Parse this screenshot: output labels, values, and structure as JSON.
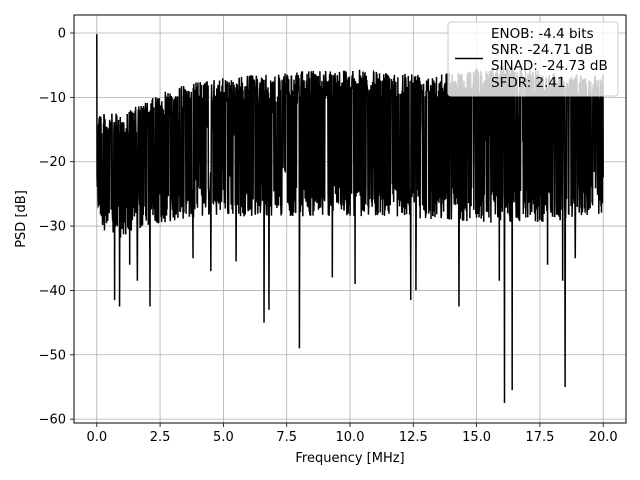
{
  "chart_data": {
    "type": "line",
    "title": "",
    "xlabel": "Frequency [MHz]",
    "ylabel": "PSD [dB]",
    "xlim": [
      -0.9,
      20.9
    ],
    "ylim": [
      -60.6,
      2.8
    ],
    "grid": true,
    "legend_position": "top-right",
    "xticks": [
      0.0,
      2.5,
      5.0,
      7.5,
      10.0,
      12.5,
      15.0,
      17.5,
      20.0
    ],
    "xtick_labels": [
      "0.0",
      "2.5",
      "5.0",
      "7.5",
      "10.0",
      "12.5",
      "15.0",
      "17.5",
      "20.0"
    ],
    "yticks": [
      0,
      -10,
      -20,
      -30,
      -40,
      -50,
      -60
    ],
    "ytick_labels": [
      "0",
      "−10",
      "−20",
      "−30",
      "−40",
      "−50",
      "−60"
    ],
    "legend_lines": [
      "ENOB: -4.4 bits",
      "SNR: -24.71 dB",
      "SINAD: -24.73 dB",
      "SFDR: 2.41"
    ],
    "series": [
      {
        "color": "#000000",
        "x_start": 0.0,
        "x_end": 20.0,
        "samples": 2048,
        "peak": {
          "x": 0.0,
          "y": -0.2
        },
        "envelope": {
          "x": [
            0.0,
            0.25,
            0.5,
            1.0,
            1.5,
            2.0,
            2.5,
            3.0,
            3.5,
            4.0,
            5.0,
            6.0,
            7.0,
            8.0,
            9.0,
            10.0,
            11.0,
            12.0,
            13.0,
            14.0,
            15.0,
            16.0,
            17.0,
            18.0,
            19.0,
            20.0
          ],
          "upper": [
            -10.5,
            -12.5,
            -12.5,
            -12.5,
            -11.5,
            -10.5,
            -9.5,
            -8.5,
            -8.0,
            -7.5,
            -7.0,
            -6.5,
            -6.5,
            -6.0,
            -5.5,
            -5.5,
            -6.0,
            -6.0,
            -6.0,
            -6.0,
            -5.5,
            -5.0,
            -5.5,
            -6.0,
            -6.5,
            -6.5
          ],
          "lower": [
            -27.0,
            -30.5,
            -31.5,
            -32.0,
            -31.0,
            -30.0,
            -29.5,
            -29.5,
            -29.0,
            -28.5,
            -28.5,
            -28.5,
            -28.5,
            -28.5,
            -28.5,
            -28.5,
            -28.5,
            -28.5,
            -29.0,
            -29.0,
            -29.5,
            -29.5,
            -29.5,
            -29.5,
            -29.0,
            -28.0
          ]
        },
        "dips": [
          {
            "x": 0.7,
            "y": -41.5
          },
          {
            "x": 0.9,
            "y": -42.5
          },
          {
            "x": 1.3,
            "y": -36.0
          },
          {
            "x": 1.6,
            "y": -38.5
          },
          {
            "x": 2.1,
            "y": -42.5
          },
          {
            "x": 3.8,
            "y": -35.0
          },
          {
            "x": 4.5,
            "y": -37.0
          },
          {
            "x": 5.5,
            "y": -35.5
          },
          {
            "x": 6.6,
            "y": -45.0
          },
          {
            "x": 6.8,
            "y": -43.0
          },
          {
            "x": 8.0,
            "y": -49.0
          },
          {
            "x": 9.3,
            "y": -38.0
          },
          {
            "x": 10.2,
            "y": -39.0
          },
          {
            "x": 12.4,
            "y": -41.5
          },
          {
            "x": 12.6,
            "y": -40.0
          },
          {
            "x": 14.3,
            "y": -42.5
          },
          {
            "x": 15.9,
            "y": -38.5
          },
          {
            "x": 16.1,
            "y": -57.5
          },
          {
            "x": 16.4,
            "y": -55.5
          },
          {
            "x": 17.8,
            "y": -36.0
          },
          {
            "x": 18.4,
            "y": -38.5
          },
          {
            "x": 18.5,
            "y": -55.0
          },
          {
            "x": 18.9,
            "y": -35.0
          }
        ]
      }
    ]
  }
}
